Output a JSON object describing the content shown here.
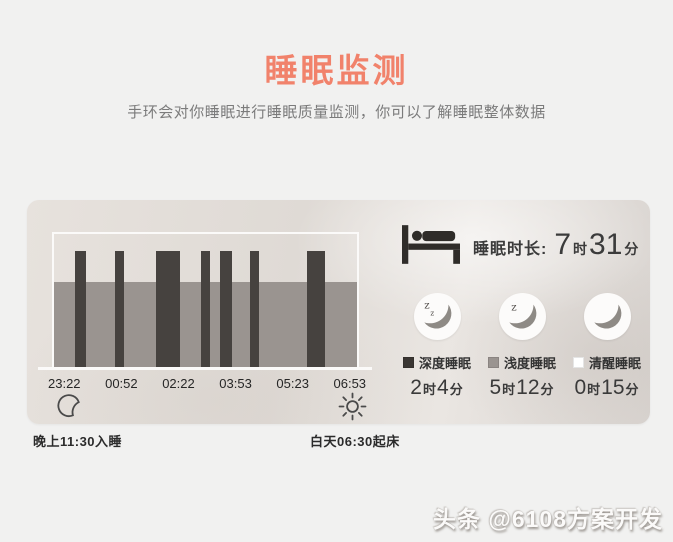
{
  "page": {
    "title": "睡眠监测",
    "subtitle": "手环会对你睡眠进行睡眠质量监测，你可以了解睡眠整体数据",
    "watermark": "头条 @6108方案开发",
    "background_color": "#f1f1f0",
    "title_color": "#f1826b"
  },
  "units": {
    "hour": "时",
    "minute": "分"
  },
  "card": {
    "sleep_duration": {
      "label": "睡眠时长:",
      "hours": "7",
      "minutes": "31"
    },
    "stages": [
      {
        "name": "深度睡眠",
        "hours": "2",
        "minutes": "4",
        "swatch_color": "#3a3633",
        "icon": "moon-zz-icon"
      },
      {
        "name": "浅度睡眠",
        "hours": "5",
        "minutes": "12",
        "swatch_color": "#9a9490",
        "icon": "moon-z-icon"
      },
      {
        "name": "清醒睡眠",
        "hours": "0",
        "minutes": "15",
        "swatch_color": "#ffffff",
        "icon": "moon-icon"
      }
    ],
    "fall_asleep_note": "晚上11:30入睡",
    "wake_up_note": "白天06:30起床"
  },
  "chart_data": {
    "type": "bar",
    "title": "",
    "x_ticks": [
      "23:22",
      "00:52",
      "02:22",
      "03:53",
      "05:23",
      "06:53"
    ],
    "x_range": [
      "23:22",
      "06:53"
    ],
    "legend_position": "right",
    "grid": false,
    "deep_color": "#46423f",
    "light_band_color": "#9a9490",
    "deep_bar_height_frac": 0.875,
    "light_band_height_frac": 0.647,
    "deep_sleep_segments": [
      {
        "start": 0.069,
        "width": 0.036
      },
      {
        "start": 0.2,
        "width": 0.03
      },
      {
        "start": 0.338,
        "width": 0.079
      },
      {
        "start": 0.485,
        "width": 0.03
      },
      {
        "start": 0.548,
        "width": 0.039
      },
      {
        "start": 0.646,
        "width": 0.03
      },
      {
        "start": 0.836,
        "width": 0.059
      }
    ],
    "series_summary": [
      {
        "name": "深度睡眠",
        "duration": "2时4分"
      },
      {
        "name": "浅度睡眠",
        "duration": "5时12分"
      },
      {
        "name": "清醒睡眠",
        "duration": "0时15分"
      },
      {
        "name": "睡眠时长",
        "duration": "7时31分"
      }
    ]
  }
}
